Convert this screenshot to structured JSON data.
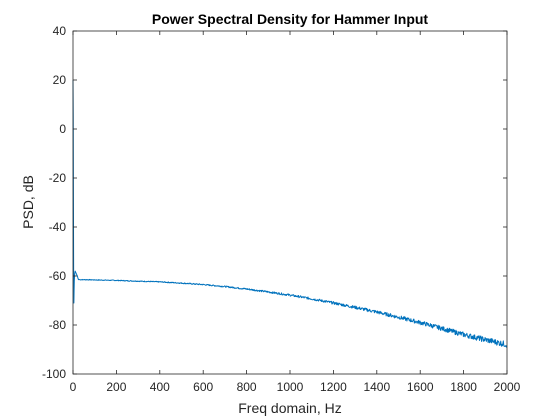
{
  "chart_data": {
    "type": "line",
    "title": "Power Spectral Density for Hammer Input",
    "xlabel": "Freq domain, Hz",
    "ylabel": "PSD, dB",
    "xlim": [
      0,
      2000
    ],
    "ylim": [
      -100,
      40
    ],
    "xticks": [
      0,
      200,
      400,
      600,
      800,
      1000,
      1200,
      1400,
      1600,
      1800,
      2000
    ],
    "yticks": [
      -100,
      -80,
      -60,
      -40,
      -20,
      0,
      20,
      40
    ],
    "xtick_labels": [
      "0",
      "200",
      "400",
      "600",
      "800",
      "1000",
      "1200",
      "1400",
      "1600",
      "1800",
      "2000"
    ],
    "ytick_labels": [
      "-100",
      "-80",
      "-60",
      "-40",
      "-20",
      "0",
      "20",
      "40"
    ],
    "grid": false,
    "box": true,
    "series": [
      {
        "color": "#0072BD",
        "x": [
          0,
          1,
          2,
          3,
          4,
          5,
          6,
          8,
          10,
          15,
          20,
          25,
          30,
          40,
          60,
          100,
          200,
          300,
          400,
          500,
          600,
          700,
          800,
          900,
          1000,
          1100,
          1200,
          1300,
          1400,
          1500,
          1600,
          1700,
          1800,
          1900,
          2000
        ],
        "y": [
          20,
          5,
          -30,
          -60,
          -71,
          -66,
          -62,
          -59,
          -58,
          -59,
          -60,
          -61.5,
          -61.5,
          -61.5,
          -61.5,
          -61.6,
          -61.8,
          -62.1,
          -62.4,
          -62.9,
          -63.5,
          -64.3,
          -65.3,
          -66.5,
          -67.8,
          -69.3,
          -71.0,
          -72.8,
          -74.7,
          -76.8,
          -79.0,
          -81.4,
          -83.9,
          -86.0,
          -88.0
        ]
      }
    ]
  }
}
